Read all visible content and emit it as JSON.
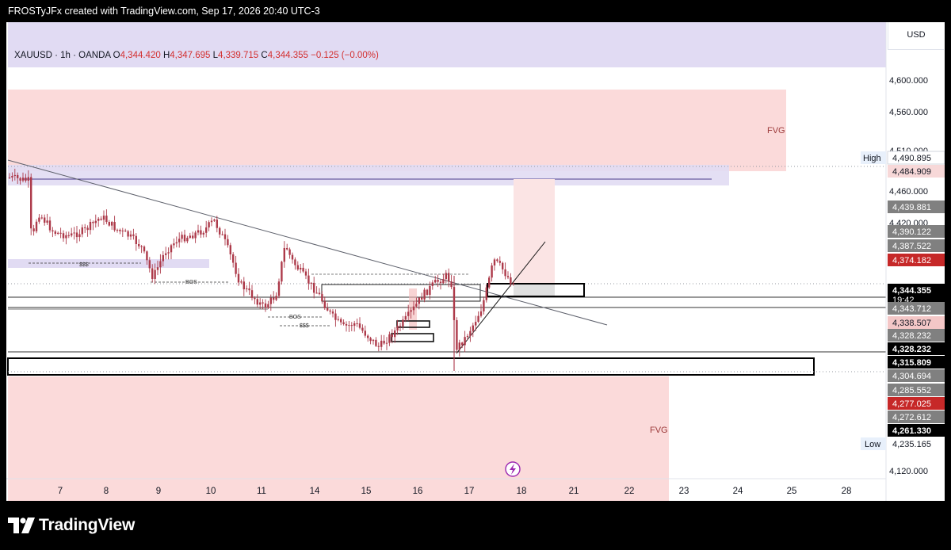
{
  "header": {
    "caption": "FROSTyJFx created with TradingView.com, Sep 17, 2026 20:40 UTC-3"
  },
  "symbol": {
    "name": "XAUUSD · 1h · OANDA",
    "o_label": "O",
    "o": "4,344.420",
    "h_label": "H",
    "h": "4,347.695",
    "l_label": "L",
    "l": "4,339.715",
    "c_label": "C",
    "c": "4,344.355",
    "change": "−0.125 (−0.00%)"
  },
  "currency": "USD",
  "price_scale": [
    "4,600.000",
    "4,560.000",
    "4,510.000",
    "4,460.000",
    "4,420.000",
    "4,120.000"
  ],
  "price_tags": [
    {
      "text": "4,490.895",
      "bg": "#ffffff",
      "fg": "#131722",
      "border": "#d1d4dc"
    },
    {
      "text": "4,484.909",
      "bg": "#f7d8d8",
      "fg": "#131722"
    },
    {
      "text": "4,439.881",
      "bg": "#808080",
      "fg": "#ffffff"
    },
    {
      "text": "4,390.122",
      "bg": "#808080",
      "fg": "#ffffff"
    },
    {
      "text": "4,387.522",
      "bg": "#808080",
      "fg": "#ffffff"
    },
    {
      "text": "4,374.182",
      "bg": "#c62828",
      "fg": "#ffffff"
    },
    {
      "text": "4,344.355",
      "sub": "19:42",
      "bg": "#000000",
      "fg": "#ffffff"
    },
    {
      "text": "4,343.712",
      "bg": "#808080",
      "fg": "#ffffff"
    },
    {
      "text": "4,338.507",
      "bg": "#f4c7c7",
      "fg": "#131722"
    },
    {
      "text": "4,328.232",
      "bg": "#808080",
      "fg": "#ffffff"
    },
    {
      "text": "4,328.232",
      "bg": "#000000",
      "fg": "#ffffff"
    },
    {
      "text": "4,315.809",
      "bg": "#000000",
      "fg": "#ffffff"
    },
    {
      "text": "4,304.694",
      "bg": "#808080",
      "fg": "#ffffff"
    },
    {
      "text": "4,285.552",
      "bg": "#808080",
      "fg": "#ffffff"
    },
    {
      "text": "4,277.025",
      "bg": "#c62828",
      "fg": "#ffffff"
    },
    {
      "text": "4,272.612",
      "bg": "#808080",
      "fg": "#ffffff"
    },
    {
      "text": "4,261.330",
      "bg": "#000000",
      "fg": "#ffffff"
    },
    {
      "text": "4,235.165",
      "bg": "#ffffff",
      "fg": "#131722"
    }
  ],
  "high_label": "High",
  "low_label": "Low",
  "time_axis": [
    "7",
    "8",
    "9",
    "10",
    "11",
    "14",
    "15",
    "16",
    "17",
    "18",
    "21",
    "22",
    "23",
    "24",
    "25",
    "28"
  ],
  "annotations": {
    "fvg_top": "FVG",
    "fvg_bottom": "FVG",
    "sss_1": "$$$",
    "sss_2": "$$$",
    "bos_1": "BOS",
    "bos_2": "BOS"
  },
  "colors": {
    "up": "#26a69a",
    "down": "#ef5350",
    "candle": "#ad3a4a",
    "fvg_fill": "#fbdada",
    "purple_fill": "#e1dbf3",
    "accent": "#9c27b0"
  },
  "icons": {
    "lightning": "lightning-icon",
    "logo": "tradingview-logo"
  },
  "chart_data": {
    "type": "candlestick",
    "title": "XAUUSD · 1h · OANDA",
    "xlabel": "",
    "ylabel": "",
    "y_axis_ticks": [
      4600,
      4560,
      4510,
      4460,
      4420,
      4120
    ],
    "x_axis_ticks": [
      "7",
      "8",
      "9",
      "10",
      "11",
      "14",
      "15",
      "16",
      "17",
      "18",
      "21",
      "22",
      "23",
      "24",
      "25",
      "28"
    ],
    "approx_close_path": [
      [
        "7",
        4470
      ],
      [
        "7",
        4440
      ],
      [
        "8",
        4415
      ],
      [
        "8",
        4435
      ],
      [
        "9",
        4360
      ],
      [
        "9",
        4410
      ],
      [
        "10",
        4420
      ],
      [
        "10",
        4430
      ],
      [
        "11",
        4330
      ],
      [
        "11",
        4400
      ],
      [
        "14",
        4300
      ],
      [
        "14",
        4330
      ],
      [
        "15",
        4280
      ],
      [
        "15",
        4310
      ],
      [
        "16",
        4340
      ],
      [
        "16",
        4360
      ],
      [
        "17",
        4270
      ],
      [
        "17",
        4330
      ],
      [
        "17",
        4380
      ],
      [
        "18",
        4344
      ]
    ],
    "last_close": 4344.355,
    "high": 4490.895,
    "low": 4235.165
  }
}
